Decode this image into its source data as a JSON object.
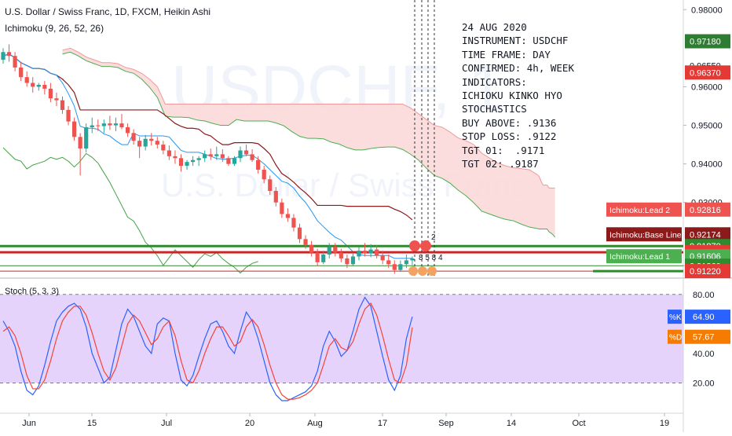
{
  "header": {
    "symbol_line": "U.S. Dollar / Swiss Franc, 1D, FXCM, Heikin Ashi",
    "indicator_line": "Ichimoku (9, 26, 52, 26)",
    "stoch_label": "Stoch (5, 3, 3)"
  },
  "watermark": {
    "ticker": "USDCHF, 1",
    "name": "U.S. Dollar / Swiss Franc"
  },
  "notes": [
    "24 AUG 2020",
    "INSTRUMENT: USDCHF",
    "TIME FRAME: DAY",
    "CONFIRMED: 4h, WEEK",
    "INDICATORS:",
    "ICHIOKU KINKO HYO",
    "STOCHASTICS",
    "BUY ABOVE: .9136",
    "STOP LOSS: .9122",
    "TGT 01:  .9171",
    "TGT 02: .9187"
  ],
  "badges": {
    "top": "2",
    "bottom": "8 5 8 4"
  },
  "colors": {
    "up_candle": "#26a69a",
    "down_candle": "#ef5350",
    "cloud_bull": "#d9eed9",
    "cloud_bear": "#fbd9d9",
    "lead1": "#4caf50",
    "lead2": "#ef9a9a",
    "base_line": "#8b1a1a",
    "conversion_line": "#2196f3",
    "lagging": "#43a047",
    "k_line": "#2962ff",
    "d_line": "#f44336",
    "stoch_bg": "#e6d3fb",
    "hline_green": "#2e8b2e",
    "hline_red": "#c62828"
  },
  "chart_data": [
    {
      "type": "candlestick",
      "title": "U.S. Dollar / Swiss Franc, 1D, FXCM, Heikin Ashi",
      "x_ticks": [
        "Jun",
        "15",
        "Jul",
        "20",
        "Aug",
        "17",
        "Sep",
        "14",
        "Oct",
        "19"
      ],
      "y_ticks": [
        "0.98000",
        "0.96000",
        "0.95000",
        "0.94000",
        "0.93000",
        "0.91360"
      ],
      "ylim": [
        0.9108,
        0.9825
      ],
      "ohlc": [
        [
          0.967,
          0.97,
          0.966,
          0.969
        ],
        [
          0.969,
          0.971,
          0.9665,
          0.968
        ],
        [
          0.968,
          0.969,
          0.964,
          0.965
        ],
        [
          0.965,
          0.9665,
          0.9615,
          0.9625
        ],
        [
          0.9625,
          0.964,
          0.96,
          0.961
        ],
        [
          0.961,
          0.9625,
          0.9585,
          0.96
        ],
        [
          0.96,
          0.961,
          0.959,
          0.9605
        ],
        [
          0.9605,
          0.9615,
          0.958,
          0.9595
        ],
        [
          0.9595,
          0.961,
          0.956,
          0.957
        ],
        [
          0.957,
          0.9585,
          0.955,
          0.9565
        ],
        [
          0.9565,
          0.9575,
          0.953,
          0.954
        ],
        [
          0.954,
          0.955,
          0.95,
          0.951
        ],
        [
          0.951,
          0.952,
          0.946,
          0.947
        ],
        [
          0.947,
          0.948,
          0.937,
          0.944
        ],
        [
          0.944,
          0.9505,
          0.943,
          0.9495
        ],
        [
          0.9495,
          0.952,
          0.948,
          0.95
        ],
        [
          0.95,
          0.9515,
          0.9485,
          0.9498
        ],
        [
          0.9498,
          0.9515,
          0.948,
          0.9505
        ],
        [
          0.9505,
          0.9525,
          0.9488,
          0.95
        ],
        [
          0.95,
          0.952,
          0.9485,
          0.9505
        ],
        [
          0.9505,
          0.953,
          0.949,
          0.9495
        ],
        [
          0.9495,
          0.9505,
          0.947,
          0.948
        ],
        [
          0.948,
          0.949,
          0.945,
          0.946
        ],
        [
          0.946,
          0.947,
          0.9415,
          0.9445
        ],
        [
          0.9445,
          0.9475,
          0.9435,
          0.9465
        ],
        [
          0.9465,
          0.948,
          0.9448,
          0.946
        ],
        [
          0.946,
          0.947,
          0.944,
          0.945
        ],
        [
          0.945,
          0.946,
          0.9425,
          0.9435
        ],
        [
          0.9435,
          0.9448,
          0.941,
          0.942
        ],
        [
          0.942,
          0.9435,
          0.94,
          0.9415
        ],
        [
          0.9415,
          0.9425,
          0.938,
          0.9395
        ],
        [
          0.9395,
          0.941,
          0.9385,
          0.9405
        ],
        [
          0.9405,
          0.942,
          0.9395,
          0.941
        ],
        [
          0.941,
          0.942,
          0.9395,
          0.9415
        ],
        [
          0.9415,
          0.9435,
          0.9405,
          0.9425
        ],
        [
          0.9425,
          0.944,
          0.941,
          0.942
        ],
        [
          0.942,
          0.9445,
          0.941,
          0.9425
        ],
        [
          0.9425,
          0.9438,
          0.9405,
          0.9415
        ],
        [
          0.9415,
          0.942,
          0.9395,
          0.94
        ],
        [
          0.94,
          0.942,
          0.9395,
          0.9415
        ],
        [
          0.9415,
          0.9445,
          0.9405,
          0.9435
        ],
        [
          0.9435,
          0.945,
          0.942,
          0.9425
        ],
        [
          0.9425,
          0.9438,
          0.9405,
          0.941
        ],
        [
          0.941,
          0.942,
          0.9375,
          0.9385
        ],
        [
          0.9385,
          0.9395,
          0.935,
          0.936
        ],
        [
          0.936,
          0.937,
          0.932,
          0.933
        ],
        [
          0.933,
          0.934,
          0.929,
          0.93
        ],
        [
          0.93,
          0.931,
          0.926,
          0.927
        ],
        [
          0.927,
          0.9285,
          0.925,
          0.926
        ],
        [
          0.926,
          0.927,
          0.9225,
          0.9235
        ],
        [
          0.9235,
          0.9245,
          0.9195,
          0.9205
        ],
        [
          0.9205,
          0.9215,
          0.918,
          0.919
        ],
        [
          0.919,
          0.92,
          0.916,
          0.917
        ],
        [
          0.917,
          0.918,
          0.9135,
          0.9145
        ],
        [
          0.9145,
          0.9175,
          0.914,
          0.9165
        ],
        [
          0.9165,
          0.9195,
          0.9155,
          0.9185
        ],
        [
          0.9185,
          0.9195,
          0.916,
          0.917
        ],
        [
          0.917,
          0.918,
          0.9145,
          0.9155
        ],
        [
          0.9155,
          0.9165,
          0.913,
          0.914
        ],
        [
          0.914,
          0.917,
          0.9135,
          0.916
        ],
        [
          0.916,
          0.9185,
          0.915,
          0.9175
        ],
        [
          0.9175,
          0.9195,
          0.916,
          0.9168
        ],
        [
          0.9168,
          0.9192,
          0.9158,
          0.9178
        ],
        [
          0.9178,
          0.919,
          0.9155,
          0.9162
        ],
        [
          0.9162,
          0.9175,
          0.914,
          0.915
        ],
        [
          0.915,
          0.9165,
          0.913,
          0.914
        ],
        [
          0.914,
          0.915,
          0.9115,
          0.9125
        ],
        [
          0.9125,
          0.915,
          0.912,
          0.914
        ],
        [
          0.914,
          0.9165,
          0.913,
          0.915
        ],
        [
          0.915,
          0.916,
          0.9138,
          0.9155
        ]
      ],
      "horizontal_levels": [
        0.9187,
        0.9171,
        0.9136,
        0.9122
      ],
      "price_labels": [
        {
          "label": "0.97180",
          "value": 0.9718,
          "color": "#2e7d32"
        },
        {
          "label": "0.96550",
          "value": 0.9655,
          "color": "#131722"
        },
        {
          "label": "0.96370",
          "value": 0.9637,
          "color": "#e53935"
        },
        {
          "label": "Ichimoku:Lead 2",
          "value": 0.92816,
          "price": "0.92816",
          "color": "#ef5350"
        },
        {
          "label": "Ichimoku:Base Line",
          "value": 0.92174,
          "price": "0.92174",
          "color": "#8b1a1a"
        },
        {
          "label": "0.91870",
          "value": 0.9187,
          "color": "#2e8b2e"
        },
        {
          "label": "0.91710",
          "value": 0.9171,
          "color": "#e53935"
        },
        {
          "label": "Ichimoku:Lead 1",
          "value": 0.91606,
          "price": "0.91606",
          "color": "#4caf50"
        },
        {
          "label": "0.91360",
          "value": 0.9136,
          "color": "#2e8b2e"
        },
        {
          "label": "0.91220",
          "value": 0.9122,
          "color": "#e53935"
        }
      ]
    },
    {
      "type": "line",
      "title": "Stoch (5, 3, 3)",
      "ylim": [
        0,
        90
      ],
      "y_ticks": [
        "80.00",
        "40.00",
        "20.00"
      ],
      "series": [
        {
          "name": "%K",
          "values": [
            62,
            55,
            45,
            28,
            15,
            12,
            18,
            32,
            48,
            62,
            68,
            72,
            74,
            70,
            58,
            40,
            30,
            20,
            24,
            42,
            60,
            70,
            65,
            55,
            45,
            40,
            60,
            64,
            62,
            40,
            22,
            18,
            25,
            38,
            50,
            60,
            62,
            55,
            45,
            40,
            55,
            68,
            62,
            50,
            35,
            20,
            12,
            8,
            8,
            10,
            12,
            14,
            18,
            28,
            45,
            55,
            48,
            38,
            42,
            55,
            70,
            78,
            72,
            55,
            38,
            22,
            15,
            25,
            50,
            64.9
          ]
        },
        {
          "name": "%D",
          "values": [
            55,
            58,
            52,
            40,
            25,
            16,
            16,
            22,
            35,
            50,
            62,
            68,
            72,
            72,
            66,
            54,
            40,
            28,
            22,
            30,
            45,
            60,
            66,
            62,
            54,
            46,
            50,
            58,
            62,
            52,
            35,
            22,
            20,
            28,
            40,
            50,
            58,
            58,
            52,
            45,
            48,
            58,
            63,
            58,
            46,
            32,
            20,
            12,
            9,
            9,
            10,
            12,
            15,
            20,
            32,
            45,
            50,
            44,
            42,
            48,
            60,
            70,
            74,
            66,
            52,
            36,
            22,
            20,
            32,
            57.67
          ]
        }
      ],
      "labels": {
        "k": "%K",
        "k_value": "64.90",
        "d": "%D",
        "d_value": "57.67"
      }
    }
  ]
}
